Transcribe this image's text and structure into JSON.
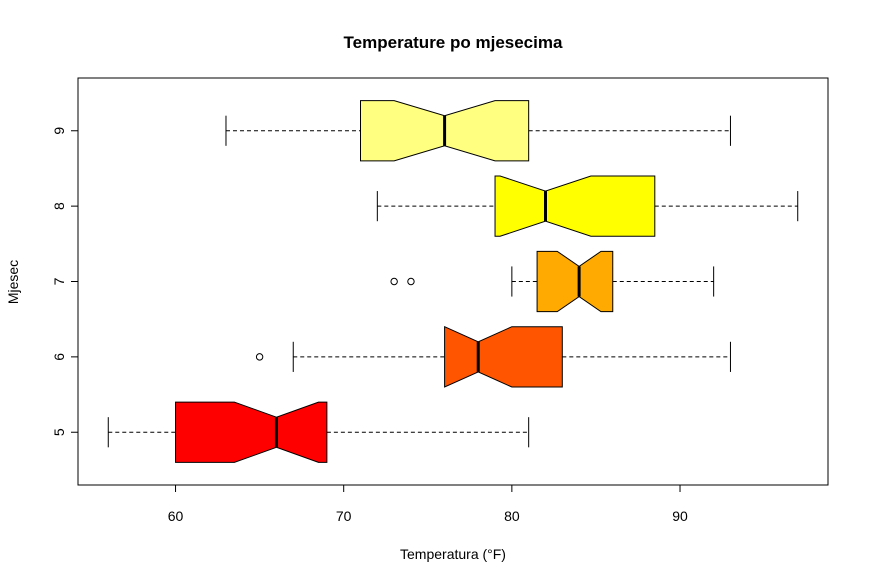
{
  "chart_data": {
    "type": "boxplot",
    "orientation": "horizontal",
    "title": "Temperature po mjesecima",
    "xlabel": "Temperatura (°F)",
    "ylabel": "Mjesec",
    "xlim": [
      54.2,
      98.8
    ],
    "x_ticks": [
      60,
      70,
      80,
      90
    ],
    "notch": true,
    "categories": [
      "5",
      "6",
      "7",
      "8",
      "9"
    ],
    "series": [
      {
        "name": "5",
        "color": "#FF0000",
        "min": 56,
        "q1": 60,
        "median": 66,
        "q3": 69,
        "max": 81,
        "notch_low": 63.5,
        "notch_high": 68.5,
        "outliers": []
      },
      {
        "name": "6",
        "color": "#FF5500",
        "min": 67,
        "q1": 76,
        "median": 78,
        "q3": 83,
        "max": 93,
        "notch_low": 76.0,
        "notch_high": 80.0,
        "outliers": [
          65
        ]
      },
      {
        "name": "7",
        "color": "#FFAA00",
        "min": 80,
        "q1": 81.5,
        "median": 84,
        "q3": 86,
        "max": 92,
        "notch_low": 82.7,
        "notch_high": 85.3,
        "outliers": [
          73,
          74
        ]
      },
      {
        "name": "8",
        "color": "#FFFF00",
        "min": 72,
        "q1": 79,
        "median": 82,
        "q3": 88.5,
        "max": 97,
        "notch_low": 79.3,
        "notch_high": 84.7,
        "outliers": []
      },
      {
        "name": "9",
        "color": "#FFFF80",
        "min": 63,
        "q1": 71,
        "median": 76,
        "q3": 81,
        "max": 93,
        "notch_low": 73.0,
        "notch_high": 79.0,
        "outliers": []
      }
    ]
  }
}
